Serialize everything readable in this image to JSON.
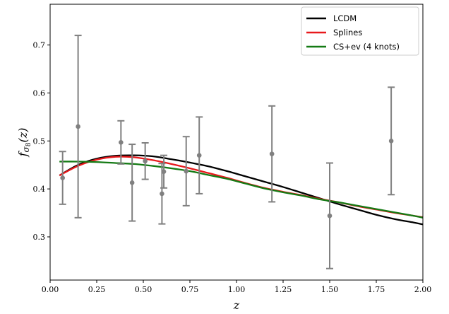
{
  "chart_data": {
    "type": "line",
    "xlabel": "z",
    "ylabel_main": "f",
    "ylabel_sub": "σ",
    "ylabel_subsub": "8",
    "ylabel_arg": "(z)",
    "xlim": [
      0.0,
      2.0
    ],
    "ylim": [
      0.21,
      0.785
    ],
    "xticks": [
      0.0,
      0.25,
      0.5,
      0.75,
      1.0,
      1.25,
      1.5,
      1.75,
      2.0
    ],
    "xtick_labels": [
      "0.00",
      "0.25",
      "0.50",
      "0.75",
      "1.00",
      "1.25",
      "1.50",
      "1.75",
      "2.00"
    ],
    "yticks": [
      0.3,
      0.4,
      0.5,
      0.6,
      0.7
    ],
    "ytick_labels": [
      "0.3",
      "0.4",
      "0.5",
      "0.6",
      "0.7"
    ],
    "legend_position": "top-right",
    "series": [
      {
        "name": "LCDM",
        "color": "#000000",
        "x": [
          0.05,
          0.15,
          0.25,
          0.35,
          0.45,
          0.55,
          0.65,
          0.75,
          0.85,
          0.95,
          1.05,
          1.15,
          1.25,
          1.35,
          1.45,
          1.55,
          1.65,
          1.75,
          1.85,
          1.95,
          2.0
        ],
        "y": [
          0.428,
          0.45,
          0.463,
          0.469,
          0.47,
          0.468,
          0.462,
          0.455,
          0.447,
          0.437,
          0.426,
          0.415,
          0.404,
          0.392,
          0.38,
          0.368,
          0.357,
          0.346,
          0.337,
          0.33,
          0.326
        ]
      },
      {
        "name": "Splines",
        "color": "#e8191c",
        "x": [
          0.05,
          0.15,
          0.25,
          0.35,
          0.45,
          0.55,
          0.65,
          0.75,
          0.85,
          0.95,
          1.05,
          1.15,
          1.25,
          1.35,
          1.45,
          1.55,
          1.65,
          1.75,
          1.85,
          1.95,
          2.0
        ],
        "y": [
          0.428,
          0.448,
          0.461,
          0.467,
          0.466,
          0.46,
          0.452,
          0.443,
          0.433,
          0.423,
          0.412,
          0.402,
          0.394,
          0.387,
          0.379,
          0.372,
          0.364,
          0.357,
          0.35,
          0.344,
          0.341
        ]
      },
      {
        "name": "CS+ev (4 knots)",
        "color": "#147a14",
        "x": [
          0.05,
          0.15,
          0.25,
          0.35,
          0.45,
          0.55,
          0.65,
          0.75,
          0.85,
          0.95,
          1.05,
          1.15,
          1.25,
          1.35,
          1.45,
          1.55,
          1.65,
          1.75,
          1.85,
          1.95,
          2.0
        ],
        "y": [
          0.457,
          0.457,
          0.456,
          0.454,
          0.452,
          0.448,
          0.443,
          0.437,
          0.429,
          0.421,
          0.411,
          0.401,
          0.393,
          0.386,
          0.378,
          0.372,
          0.365,
          0.358,
          0.351,
          0.344,
          0.34
        ]
      }
    ],
    "data_points": {
      "color": "#808080",
      "points": [
        {
          "x": 0.067,
          "y": 0.423,
          "yerr_low": 0.055,
          "yerr_high": 0.055
        },
        {
          "x": 0.15,
          "y": 0.53,
          "yerr_low": 0.19,
          "yerr_high": 0.19
        },
        {
          "x": 0.38,
          "y": 0.497,
          "yerr_low": 0.045,
          "yerr_high": 0.045
        },
        {
          "x": 0.44,
          "y": 0.413,
          "yerr_low": 0.08,
          "yerr_high": 0.08
        },
        {
          "x": 0.51,
          "y": 0.458,
          "yerr_low": 0.038,
          "yerr_high": 0.038
        },
        {
          "x": 0.6,
          "y": 0.39,
          "yerr_low": 0.063,
          "yerr_high": 0.063
        },
        {
          "x": 0.61,
          "y": 0.436,
          "yerr_low": 0.034,
          "yerr_high": 0.034
        },
        {
          "x": 0.73,
          "y": 0.437,
          "yerr_low": 0.072,
          "yerr_high": 0.072
        },
        {
          "x": 0.8,
          "y": 0.47,
          "yerr_low": 0.08,
          "yerr_high": 0.08
        },
        {
          "x": 1.19,
          "y": 0.473,
          "yerr_low": 0.1,
          "yerr_high": 0.1
        },
        {
          "x": 1.5,
          "y": 0.344,
          "yerr_low": 0.11,
          "yerr_high": 0.11
        },
        {
          "x": 1.83,
          "y": 0.5,
          "yerr_low": 0.112,
          "yerr_high": 0.112
        }
      ]
    }
  }
}
